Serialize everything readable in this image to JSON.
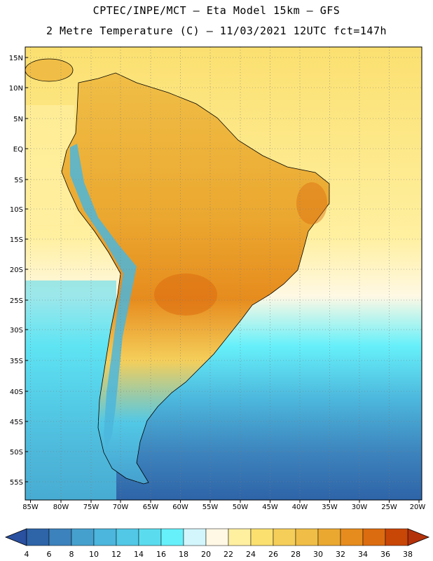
{
  "header": {
    "line1": "CPTEC/INPE/MCT –  Eta Model 15km – GFS",
    "line2": "2 Metre Temperature (C) – 11/03/2021 12UTC fct=147h"
  },
  "map": {
    "lat_labels": [
      "15N",
      "10N",
      "5N",
      "EQ",
      "5S",
      "10S",
      "15S",
      "20S",
      "25S",
      "30S",
      "35S",
      "40S",
      "45S",
      "50S",
      "55S"
    ],
    "lon_labels": [
      "85W",
      "80W",
      "75W",
      "70W",
      "65W",
      "60W",
      "55W",
      "50W",
      "45W",
      "40W",
      "35W",
      "30W",
      "25W",
      "20W"
    ]
  },
  "colorbar": {
    "labels": [
      "4",
      "6",
      "8",
      "10",
      "12",
      "14",
      "16",
      "18",
      "20",
      "22",
      "24",
      "26",
      "28",
      "30",
      "32",
      "34",
      "36",
      "38"
    ],
    "colors": [
      "#2e64a8",
      "#3c82bc",
      "#46a0ce",
      "#4cb6dc",
      "#52c8e6",
      "#5adcee",
      "#66f0fa",
      "#d2f6fc",
      "#fff8e4",
      "#fff0a0",
      "#fbe070",
      "#f5ce5a",
      "#f0be46",
      "#eba830",
      "#e68c1e",
      "#dc6c10",
      "#c84606"
    ],
    "low_color": "#2a50a0",
    "high_color": "#b4320a"
  }
}
